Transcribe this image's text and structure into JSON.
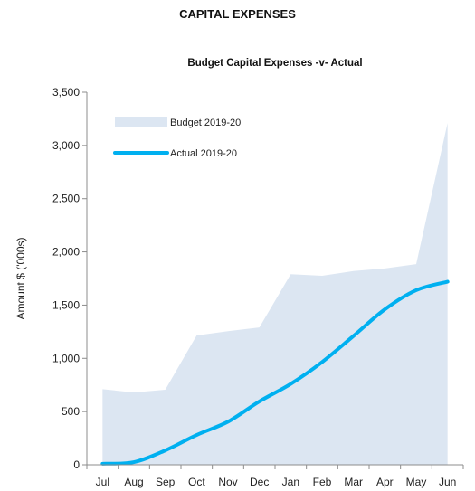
{
  "page": {
    "heading": "CAPITAL EXPENSES"
  },
  "chart_data": {
    "type": "area",
    "title": "Budget Capital Expenses -v- Actual",
    "xlabel": "",
    "ylabel": "Amount $ ('000s)",
    "categories": [
      "Jul",
      "Aug",
      "Sep",
      "Oct",
      "Nov",
      "Dec",
      "Jan",
      "Feb",
      "Mar",
      "Apr",
      "May",
      "Jun"
    ],
    "ylim": [
      0,
      3500
    ],
    "yticks": [
      0,
      500,
      1000,
      1500,
      2000,
      2500,
      3000,
      3500
    ],
    "ytick_labels": [
      "0",
      "500",
      "1,000",
      "1,500",
      "2,000",
      "2,500",
      "3,000",
      "3,500"
    ],
    "grid": false,
    "legend_position": "top-left",
    "series": [
      {
        "name": "Budget 2019-20",
        "kind": "area",
        "color": "#dce6f2",
        "values": [
          710,
          680,
          705,
          1215,
          1255,
          1290,
          1790,
          1775,
          1820,
          1845,
          1885,
          3210
        ]
      },
      {
        "name": "Actual 2019-20",
        "kind": "line",
        "color": "#00b0f0",
        "values": [
          10,
          25,
          135,
          280,
          405,
          595,
          760,
          965,
          1210,
          1460,
          1640,
          1720
        ]
      }
    ]
  }
}
